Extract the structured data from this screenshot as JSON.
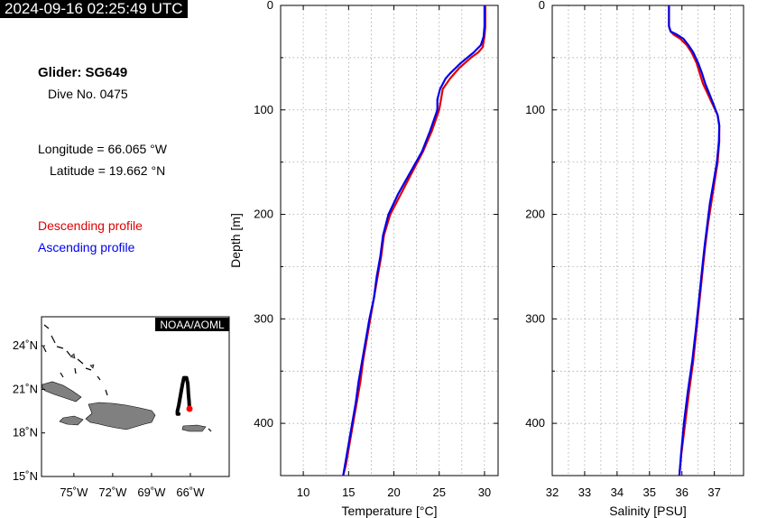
{
  "header": {
    "timestamp": "2024-09-16 02:25:49 UTC"
  },
  "info": {
    "glider": "Glider: SG649",
    "dive": "Dive No. 0475",
    "longitude": "Longitude = 66.065 °W",
    "latitude": "Latitude = 19.662 °N",
    "descending_label": "Descending profile",
    "ascending_label": "Ascending profile"
  },
  "colors": {
    "descending": "#e00000",
    "ascending": "#0000ee",
    "land": "#808080",
    "track": "#000000",
    "position": "#ff0000"
  },
  "map": {
    "credit": "NOAA/AOML",
    "lat_ticks": [
      "24˚N",
      "21˚N",
      "18˚N",
      "15˚N"
    ],
    "lon_ticks": [
      "75˚W",
      "72˚W",
      "69˚W",
      "66˚W"
    ],
    "lon_range": [
      -77.5,
      -63
    ],
    "lat_range": [
      15,
      26
    ],
    "glider_position": [
      -66.065,
      19.662
    ],
    "track": [
      [
        -66.9,
        19.3
      ],
      [
        -67.0,
        19.3
      ],
      [
        -67.0,
        19.5
      ],
      [
        -66.9,
        19.9
      ],
      [
        -66.8,
        20.4
      ],
      [
        -66.7,
        20.9
      ],
      [
        -66.6,
        21.4
      ],
      [
        -66.5,
        21.8
      ],
      [
        -66.3,
        21.8
      ],
      [
        -66.2,
        21.4
      ],
      [
        -66.15,
        20.7
      ],
      [
        -66.1,
        20.2
      ],
      [
        -66.065,
        19.662
      ]
    ]
  },
  "chart_data": [
    {
      "type": "line",
      "xlabel": "Temperature [°C]",
      "ylabel": "Depth [m]",
      "xlim": [
        7.5,
        31.5
      ],
      "ylim": [
        450,
        0
      ],
      "x_ticks": [
        "10",
        "15",
        "20",
        "25",
        "30"
      ],
      "y_ticks": [
        "0",
        "100",
        "200",
        "300",
        "400"
      ],
      "grid": true,
      "series": [
        {
          "name": "Descending profile",
          "depth": [
            0,
            10,
            20,
            30,
            40,
            45,
            50,
            60,
            70,
            80,
            90,
            100,
            120,
            140,
            160,
            180,
            200,
            220,
            240,
            260,
            280,
            300,
            320,
            340,
            360,
            380,
            400,
            420,
            440,
            450
          ],
          "values": [
            30.1,
            30.1,
            30.1,
            30.0,
            29.8,
            29.3,
            28.5,
            27.2,
            26.2,
            25.4,
            25.2,
            25.0,
            24.2,
            23.2,
            22.0,
            20.8,
            19.6,
            18.9,
            18.6,
            18.2,
            17.8,
            17.4,
            17.0,
            16.6,
            16.3,
            15.9,
            15.5,
            15.1,
            14.7,
            14.4
          ]
        },
        {
          "name": "Ascending profile",
          "depth": [
            0,
            10,
            20,
            30,
            38,
            45,
            50,
            55,
            60,
            65,
            70,
            80,
            90,
            100,
            120,
            140,
            160,
            180,
            200,
            220,
            240,
            260,
            280,
            300,
            320,
            340,
            360,
            380,
            400,
            420,
            440,
            450
          ],
          "values": [
            30.0,
            30.0,
            30.0,
            29.9,
            29.6,
            28.8,
            28.1,
            27.4,
            26.8,
            26.2,
            25.7,
            25.1,
            24.8,
            24.8,
            24.0,
            23.1,
            21.8,
            20.5,
            19.4,
            18.8,
            18.5,
            18.1,
            17.8,
            17.3,
            16.9,
            16.5,
            16.1,
            15.8,
            15.4,
            15.0,
            14.6,
            14.4
          ]
        }
      ]
    },
    {
      "type": "line",
      "xlabel": "Salinity [PSU]",
      "ylabel": "",
      "xlim": [
        32,
        37.9
      ],
      "ylim": [
        450,
        0
      ],
      "x_ticks": [
        "32",
        "33",
        "34",
        "35",
        "36",
        "37"
      ],
      "y_ticks": [
        "0",
        "100",
        "200",
        "300",
        "400"
      ],
      "grid": true,
      "series": [
        {
          "name": "Descending profile",
          "depth": [
            0,
            10,
            20,
            25,
            28,
            32,
            38,
            45,
            55,
            65,
            75,
            85,
            95,
            105,
            115,
            130,
            150,
            170,
            190,
            210,
            230,
            250,
            280,
            310,
            340,
            370,
            400,
            430,
            450
          ],
          "values": [
            35.6,
            35.6,
            35.6,
            35.65,
            35.75,
            35.95,
            36.15,
            36.3,
            36.45,
            36.55,
            36.65,
            36.8,
            36.95,
            37.1,
            37.15,
            37.15,
            37.1,
            37.0,
            36.9,
            36.8,
            36.72,
            36.65,
            36.55,
            36.45,
            36.35,
            36.22,
            36.1,
            35.98,
            35.92
          ]
        },
        {
          "name": "Ascending profile",
          "depth": [
            0,
            10,
            20,
            25,
            28,
            32,
            38,
            45,
            55,
            65,
            75,
            85,
            95,
            105,
            115,
            130,
            150,
            170,
            190,
            210,
            230,
            250,
            280,
            310,
            340,
            370,
            400,
            430,
            450
          ],
          "values": [
            35.6,
            35.6,
            35.6,
            35.65,
            35.85,
            36.05,
            36.2,
            36.35,
            36.5,
            36.62,
            36.72,
            36.85,
            36.98,
            37.1,
            37.15,
            37.14,
            37.08,
            36.97,
            36.86,
            36.78,
            36.7,
            36.63,
            36.53,
            36.43,
            36.32,
            36.18,
            36.06,
            35.97,
            35.92
          ]
        }
      ]
    }
  ]
}
